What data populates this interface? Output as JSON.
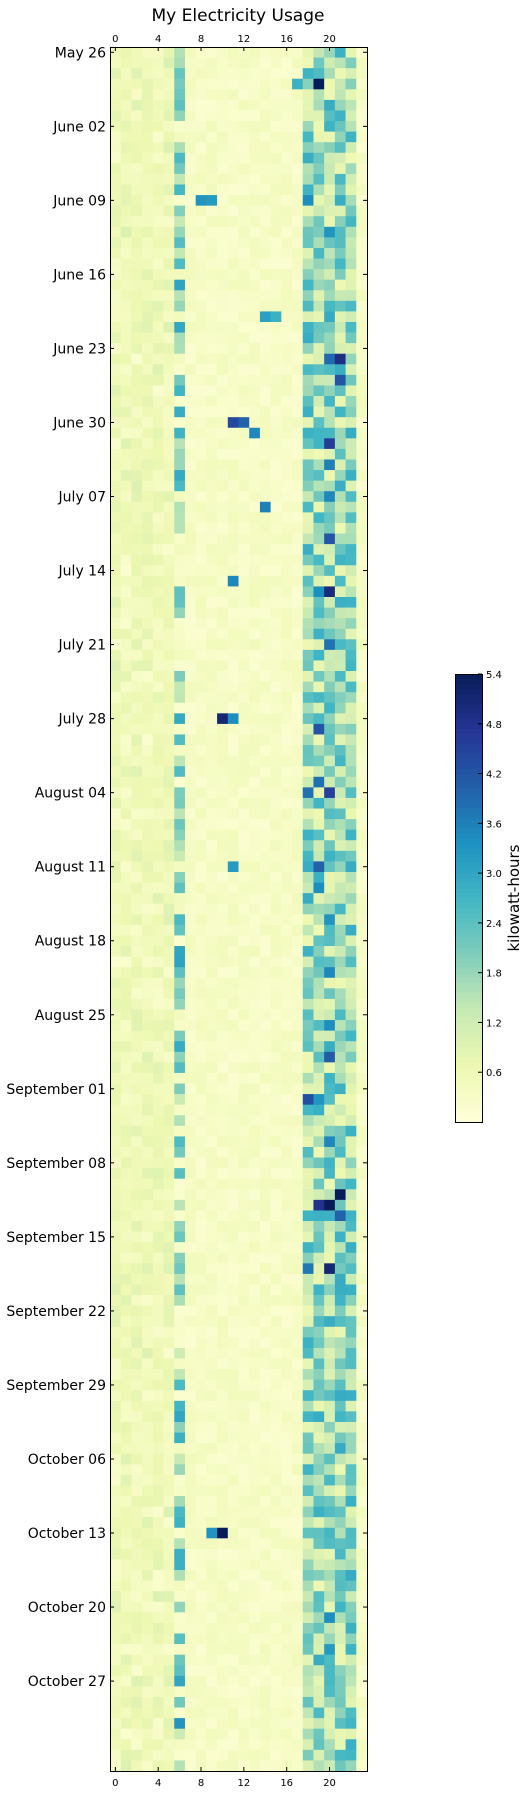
{
  "chart_data": {
    "type": "heatmap",
    "title": "My Electricity Usage",
    "x_ticks": [
      "0",
      "4",
      "8",
      "12",
      "16",
      "20"
    ],
    "x_tick_values": [
      0,
      4,
      8,
      12,
      16,
      20
    ],
    "x_range": [
      0,
      24
    ],
    "y_ticks": [
      "May 26",
      "June 02",
      "June 09",
      "June 16",
      "June 23",
      "June 30",
      "July 07",
      "July 14",
      "July 21",
      "July 28",
      "August 04",
      "August 11",
      "August 18",
      "August 25",
      "September 01",
      "September 08",
      "September 15",
      "September 22",
      "September 29",
      "October 06",
      "October 13",
      "October 20",
      "October 27"
    ],
    "colorbar": {
      "label": "kilowatt-hours",
      "ticks": [
        "0.6",
        "1.2",
        "1.8",
        "2.4",
        "3.0",
        "3.6",
        "4.2",
        "4.8",
        "5.4"
      ],
      "tick_values": [
        0.6,
        1.2,
        1.8,
        2.4,
        3.0,
        3.6,
        4.2,
        4.8,
        5.4
      ],
      "min": 0.0,
      "max": 5.4,
      "colormap": "YlGnBu"
    },
    "rows": 163,
    "cols": 24,
    "highlights": [
      {
        "day": 1,
        "hour": 19,
        "value": 2.2
      },
      {
        "day": 3,
        "hour": 19,
        "value": 5.4
      },
      {
        "day": 3,
        "hour": 17,
        "value": 2.8
      },
      {
        "day": 14,
        "hour": 8,
        "value": 3.3
      },
      {
        "day": 14,
        "hour": 9,
        "value": 3.2
      },
      {
        "day": 14,
        "hour": 18,
        "value": 3.4
      },
      {
        "day": 17,
        "hour": 20,
        "value": 3.3
      },
      {
        "day": 25,
        "hour": 14,
        "value": 3.1
      },
      {
        "day": 25,
        "hour": 15,
        "value": 2.8
      },
      {
        "day": 29,
        "hour": 20,
        "value": 3.9
      },
      {
        "day": 29,
        "hour": 21,
        "value": 4.9
      },
      {
        "day": 31,
        "hour": 21,
        "value": 4.2
      },
      {
        "day": 35,
        "hour": 11,
        "value": 4.4
      },
      {
        "day": 35,
        "hour": 12,
        "value": 4.0
      },
      {
        "day": 36,
        "hour": 13,
        "value": 3.5
      },
      {
        "day": 37,
        "hour": 20,
        "value": 4.6
      },
      {
        "day": 39,
        "hour": 20,
        "value": 3.6
      },
      {
        "day": 42,
        "hour": 20,
        "value": 3.5
      },
      {
        "day": 43,
        "hour": 14,
        "value": 3.6
      },
      {
        "day": 46,
        "hour": 20,
        "value": 4.2
      },
      {
        "day": 50,
        "hour": 11,
        "value": 3.5
      },
      {
        "day": 51,
        "hour": 20,
        "value": 5.0
      },
      {
        "day": 51,
        "hour": 19,
        "value": 3.4
      },
      {
        "day": 56,
        "hour": 20,
        "value": 3.8
      },
      {
        "day": 63,
        "hour": 10,
        "value": 5.1
      },
      {
        "day": 63,
        "hour": 11,
        "value": 3.4
      },
      {
        "day": 64,
        "hour": 19,
        "value": 4.2
      },
      {
        "day": 69,
        "hour": 19,
        "value": 3.8
      },
      {
        "day": 70,
        "hour": 20,
        "value": 4.5
      },
      {
        "day": 70,
        "hour": 18,
        "value": 3.8
      },
      {
        "day": 77,
        "hour": 11,
        "value": 3.2
      },
      {
        "day": 77,
        "hour": 19,
        "value": 4.0
      },
      {
        "day": 79,
        "hour": 19,
        "value": 3.4
      },
      {
        "day": 82,
        "hour": 20,
        "value": 3.3
      },
      {
        "day": 87,
        "hour": 20,
        "value": 3.5
      },
      {
        "day": 92,
        "hour": 20,
        "value": 3.4
      },
      {
        "day": 95,
        "hour": 20,
        "value": 4.1
      },
      {
        "day": 99,
        "hour": 18,
        "value": 4.3
      },
      {
        "day": 99,
        "hour": 19,
        "value": 3.3
      },
      {
        "day": 103,
        "hour": 20,
        "value": 3.5
      },
      {
        "day": 108,
        "hour": 21,
        "value": 5.4
      },
      {
        "day": 109,
        "hour": 20,
        "value": 5.4
      },
      {
        "day": 109,
        "hour": 19,
        "value": 4.8
      },
      {
        "day": 110,
        "hour": 21,
        "value": 4.0
      },
      {
        "day": 115,
        "hour": 20,
        "value": 5.1
      },
      {
        "day": 115,
        "hour": 18,
        "value": 3.7
      },
      {
        "day": 140,
        "hour": 10,
        "value": 5.4
      },
      {
        "day": 140,
        "hour": 9,
        "value": 3.3
      },
      {
        "day": 148,
        "hour": 20,
        "value": 3.4
      },
      {
        "day": 151,
        "hour": 20,
        "value": 3.2
      },
      {
        "day": 158,
        "hour": 6,
        "value": 3.3
      }
    ]
  }
}
